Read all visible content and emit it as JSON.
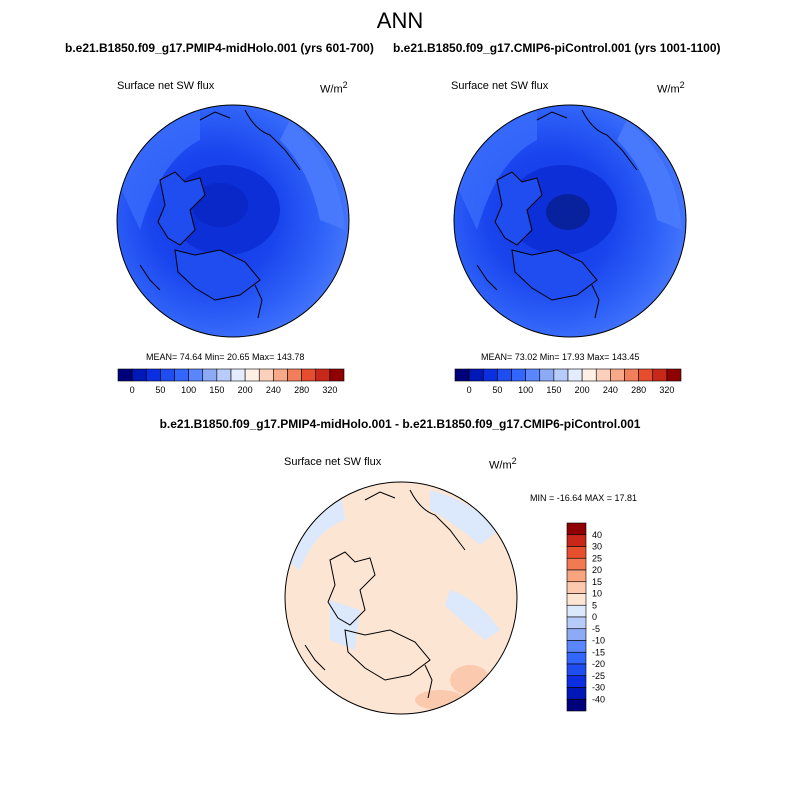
{
  "page": {
    "title": "ANN",
    "left_header": "b.e21.B1850.f09_g17.PMIP4-midHolo.001 (yrs 601-700)",
    "right_header": "b.e21.B1850.f09_g17.CMIP6-piControl.001 (yrs 1001-1100)",
    "diff_header": "b.e21.B1850.f09_g17.PMIP4-midHolo.001 - b.e21.B1850.f09_g17.CMIP6-piControl.001"
  },
  "colors": {
    "abs_scale": [
      "#00007a",
      "#0018b8",
      "#0a2ee0",
      "#1f4df0",
      "#3366ff",
      "#5a86ff",
      "#8daaf5",
      "#b8ccfa",
      "#e4ecff",
      "#fff0e6",
      "#fbd0bd",
      "#f8a98a",
      "#f27f5c",
      "#e64d2e",
      "#c8281a",
      "#8f0000"
    ],
    "diff_scale": [
      "#00007a",
      "#0018b8",
      "#0a2ee0",
      "#1f4df0",
      "#3366ff",
      "#5a86ff",
      "#8daaf5",
      "#b8ccfa",
      "#dce8fb",
      "#fde5d4",
      "#fbc9ae",
      "#f8a47f",
      "#f27a52",
      "#e6502e",
      "#c8281a",
      "#8f0000"
    ]
  },
  "chart_data": [
    {
      "type": "heatmap",
      "projection": "polar-stereographic",
      "region": "Northern Hemisphere high latitudes",
      "variable_label": "Surface net SW flux",
      "units_label": "W/m",
      "units_exp": "2",
      "stats_text": "MEAN=  74.64   Min=  20.65   Max= 143.78",
      "stats": {
        "mean": 74.64,
        "min": 20.65,
        "max": 143.78
      },
      "colorbar_ticks": [
        "0",
        "50",
        "100",
        "150",
        "200",
        "240",
        "280",
        "320"
      ],
      "colorbar_orientation": "horizontal"
    },
    {
      "type": "heatmap",
      "projection": "polar-stereographic",
      "region": "Northern Hemisphere high latitudes",
      "variable_label": "Surface net SW flux",
      "units_label": "W/m",
      "units_exp": "2",
      "stats_text": "MEAN=  73.02   Min=  17.93   Max= 143.45",
      "stats": {
        "mean": 73.02,
        "min": 17.93,
        "max": 143.45
      },
      "colorbar_ticks": [
        "0",
        "50",
        "100",
        "150",
        "200",
        "240",
        "280",
        "320"
      ],
      "colorbar_orientation": "horizontal"
    },
    {
      "type": "heatmap",
      "projection": "polar-stereographic",
      "region": "Northern Hemisphere high latitudes",
      "variable_label": "Surface net SW flux",
      "units_label": "W/m",
      "units_exp": "2",
      "minmax_text": "MIN = -16.64  MAX =  17.81",
      "stats": {
        "min": -16.64,
        "max": 17.81
      },
      "colorbar_ticks": [
        "40",
        "30",
        "25",
        "20",
        "15",
        "10",
        "5",
        "0",
        "-5",
        "-10",
        "-15",
        "-20",
        "-25",
        "-30",
        "-40"
      ],
      "colorbar_orientation": "vertical"
    }
  ]
}
